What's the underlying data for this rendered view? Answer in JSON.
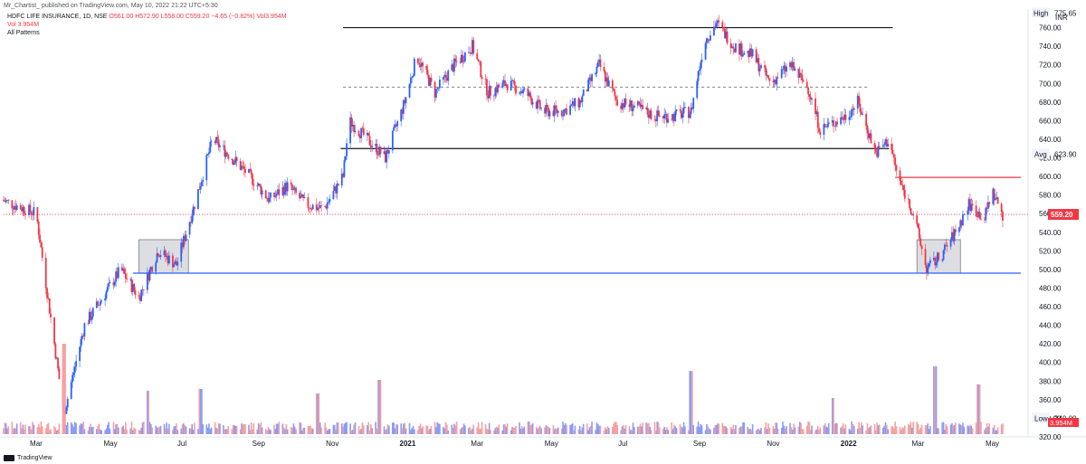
{
  "header": {
    "published": "Mr_Chartist_ published on TradingView.com, May 10, 2022 21:22 UTC+5:30",
    "symbol_line": "HDFC LIFE INSURANCE, 1D, NSE",
    "ohlc": "O561.00 H572.90 L558.00 C559.20 −4.65 (−0.82%) Vol3.954M",
    "vol_line": "Vol  3.954M",
    "patterns": "All Patterns"
  },
  "footer": {
    "brand": "TradingView"
  },
  "axis": {
    "currency": "INR",
    "high_label": "High",
    "high_value": "775.65",
    "avg_label": "Avg",
    "avg_value": "623.90",
    "low_label": "Low",
    "low_value": "340.00",
    "last_price": "559.20",
    "last_volume": "3.954M"
  },
  "chart_data": {
    "type": "candlestick",
    "title": "",
    "xlabel": "",
    "ylabel": "",
    "ylim": [
      320,
      780
    ],
    "yticks": [
      320,
      340,
      360,
      380,
      400,
      420,
      440,
      460,
      480,
      500,
      520,
      540,
      560,
      580,
      600,
      620,
      640,
      660,
      680,
      700,
      720,
      740,
      760
    ],
    "xticks": [
      "Mar",
      "May",
      "Jul",
      "Sep",
      "Nov",
      "2021",
      "Mar",
      "May",
      "Jul",
      "Sep",
      "Nov",
      "2022",
      "Mar",
      "May"
    ],
    "colors": {
      "up": "#2962ff",
      "down": "#f23645",
      "vol_up": "#8b9cf7",
      "vol_down": "#f7a0a0"
    },
    "price_path": [
      [
        "2020-02-01",
        575
      ],
      [
        "2020-03-01",
        560
      ],
      [
        "2020-03-24",
        345
      ],
      [
        "2020-04-10",
        440
      ],
      [
        "2020-05-10",
        500
      ],
      [
        "2020-05-25",
        470
      ],
      [
        "2020-06-10",
        520
      ],
      [
        "2020-06-25",
        505
      ],
      [
        "2020-07-10",
        570
      ],
      [
        "2020-07-25",
        640
      ],
      [
        "2020-08-10",
        620
      ],
      [
        "2020-08-25",
        600
      ],
      [
        "2020-09-10",
        575
      ],
      [
        "2020-09-25",
        590
      ],
      [
        "2020-10-10",
        570
      ],
      [
        "2020-10-25",
        565
      ],
      [
        "2020-11-10",
        600
      ],
      [
        "2020-11-15",
        660
      ],
      [
        "2020-11-30",
        640
      ],
      [
        "2020-12-15",
        620
      ],
      [
        "2020-12-31",
        680
      ],
      [
        "2021-01-10",
        730
      ],
      [
        "2021-01-25",
        690
      ],
      [
        "2021-02-10",
        720
      ],
      [
        "2021-02-25",
        740
      ],
      [
        "2021-03-10",
        690
      ],
      [
        "2021-03-25",
        700
      ],
      [
        "2021-04-10",
        690
      ],
      [
        "2021-04-25",
        670
      ],
      [
        "2021-05-10",
        670
      ],
      [
        "2021-05-25",
        680
      ],
      [
        "2021-06-10",
        720
      ],
      [
        "2021-06-25",
        680
      ],
      [
        "2021-07-10",
        675
      ],
      [
        "2021-07-25",
        665
      ],
      [
        "2021-08-10",
        665
      ],
      [
        "2021-08-25",
        670
      ],
      [
        "2021-09-05",
        745
      ],
      [
        "2021-09-15",
        765
      ],
      [
        "2021-09-30",
        740
      ],
      [
        "2021-10-15",
        730
      ],
      [
        "2021-10-30",
        700
      ],
      [
        "2021-11-15",
        720
      ],
      [
        "2021-11-30",
        695
      ],
      [
        "2021-12-10",
        650
      ],
      [
        "2021-12-31",
        665
      ],
      [
        "2022-01-10",
        680
      ],
      [
        "2022-01-25",
        625
      ],
      [
        "2022-02-05",
        640
      ],
      [
        "2022-02-12",
        600
      ],
      [
        "2022-02-25",
        560
      ],
      [
        "2022-03-08",
        500
      ],
      [
        "2022-03-20",
        515
      ],
      [
        "2022-04-01",
        540
      ],
      [
        "2022-04-12",
        570
      ],
      [
        "2022-04-25",
        555
      ],
      [
        "2022-05-01",
        585
      ],
      [
        "2022-05-10",
        559.2
      ]
    ],
    "volume_spikes": [
      [
        "2020-03-24",
        100
      ],
      [
        "2020-06-01",
        48
      ],
      [
        "2020-07-15",
        50
      ],
      [
        "2020-10-20",
        45
      ],
      [
        "2020-12-10",
        60
      ],
      [
        "2021-08-25",
        70
      ],
      [
        "2021-12-20",
        40
      ],
      [
        "2022-03-15",
        75
      ],
      [
        "2022-04-20",
        55
      ]
    ],
    "annotations": {
      "horizontal_levels": [
        {
          "value": 760,
          "from": "2020-11-10",
          "to": "2022-02-08",
          "color": "#131722"
        },
        {
          "value": 696,
          "from": "2020-11-10",
          "to": "2022-01-20",
          "color": "#9598a1",
          "dashed": true
        },
        {
          "value": 630,
          "from": "2020-11-08",
          "to": "2022-02-05",
          "color": "#131722"
        },
        {
          "value": 599,
          "from": "2022-02-10",
          "to": "2022-05-25",
          "color": "#f23645"
        },
        {
          "value": 496,
          "from": "2020-05-20",
          "to": "2022-05-25",
          "color": "#2962ff"
        }
      ],
      "boxes": [
        {
          "from": "2020-05-25",
          "to": "2020-07-05",
          "top": 532,
          "bottom": 496
        },
        {
          "from": "2022-02-28",
          "to": "2022-04-05",
          "top": 532,
          "bottom": 496
        }
      ]
    }
  }
}
